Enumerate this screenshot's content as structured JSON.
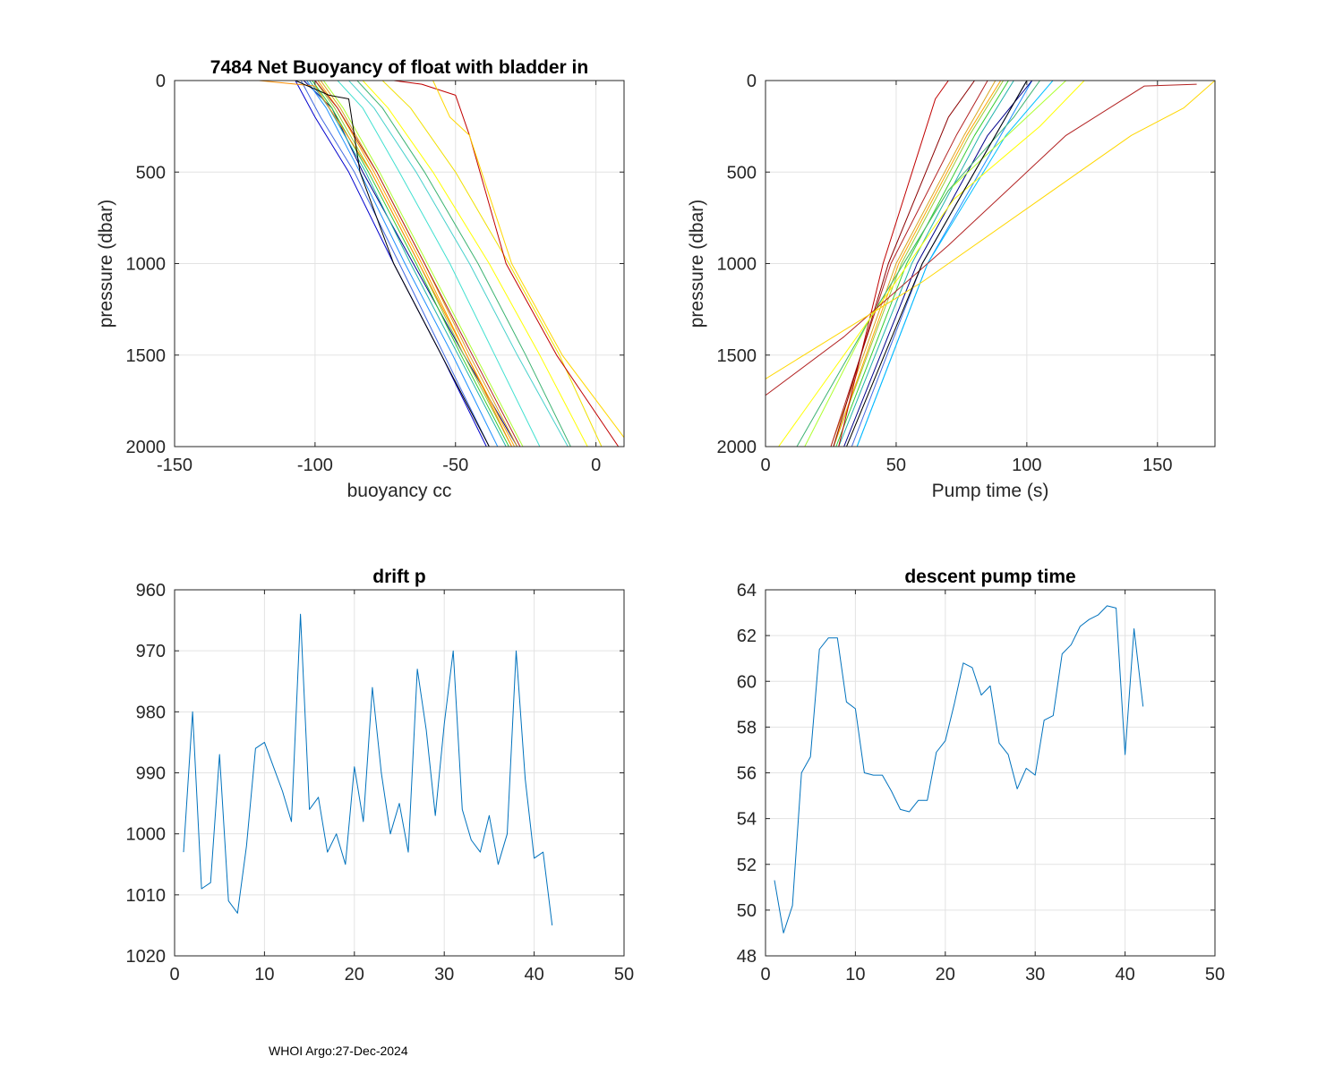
{
  "footer": "WHOI Argo:27-Dec-2024",
  "chart_data": [
    {
      "id": "buoyancy",
      "type": "line",
      "title": "7484 Net Buoyancy of float with bladder in",
      "xlabel": "buoyancy cc",
      "ylabel": "pressure (dbar)",
      "xlim": [
        -150,
        10
      ],
      "ylim": [
        0,
        2000
      ],
      "y_reversed": true,
      "xticks": [
        -150,
        -100,
        -50,
        0
      ],
      "yticks": [
        0,
        500,
        1000,
        1500,
        2000
      ],
      "grid": true,
      "series": [
        {
          "color": "#0000cd",
          "x": [
            -107,
            -100,
            -88,
            -72,
            -55,
            -39
          ],
          "y": [
            0,
            200,
            500,
            1000,
            1500,
            2000
          ]
        },
        {
          "color": "#4169e1",
          "x": [
            -105,
            -98,
            -86,
            -70,
            -54,
            -38
          ],
          "y": [
            0,
            200,
            500,
            1000,
            1500,
            2000
          ]
        },
        {
          "color": "#00008b",
          "x": [
            -104,
            -94,
            -83,
            -65,
            -47,
            -28
          ],
          "y": [
            0,
            150,
            500,
            1000,
            1500,
            2000
          ]
        },
        {
          "color": "#1e90ff",
          "x": [
            -103,
            -96,
            -84,
            -68,
            -51,
            -35
          ],
          "y": [
            0,
            150,
            500,
            1000,
            1500,
            2000
          ]
        },
        {
          "color": "#20b2aa",
          "x": [
            -102,
            -95,
            -82,
            -66,
            -49,
            -32
          ],
          "y": [
            0,
            150,
            500,
            1000,
            1500,
            2000
          ]
        },
        {
          "color": "#32cd32",
          "x": [
            -101,
            -94,
            -81,
            -64,
            -48,
            -31
          ],
          "y": [
            0,
            150,
            500,
            1000,
            1500,
            2000
          ]
        },
        {
          "color": "#9acd32",
          "x": [
            -100,
            -93,
            -80,
            -63,
            -47,
            -30
          ],
          "y": [
            0,
            150,
            500,
            1000,
            1500,
            2000
          ]
        },
        {
          "color": "#ffa500",
          "x": [
            -99,
            -92,
            -79,
            -62,
            -46,
            -29
          ],
          "y": [
            0,
            150,
            500,
            1000,
            1500,
            2000
          ]
        },
        {
          "color": "#ff8c00",
          "x": [
            -120,
            -100,
            -80,
            -63,
            -46,
            -30
          ],
          "y": [
            0,
            30,
            500,
            1000,
            1500,
            2000
          ]
        },
        {
          "color": "#daa520",
          "x": [
            -98,
            -91,
            -78,
            -61,
            -45,
            -28
          ],
          "y": [
            0,
            150,
            500,
            1000,
            1500,
            2000
          ]
        },
        {
          "color": "#b22222",
          "x": [
            -100,
            -92,
            -78,
            -61,
            -44,
            -27
          ],
          "y": [
            0,
            150,
            500,
            1000,
            1500,
            2000
          ]
        },
        {
          "color": "#adff2f",
          "x": [
            -97,
            -90,
            -77,
            -60,
            -43,
            -26
          ],
          "y": [
            0,
            150,
            500,
            1000,
            1500,
            2000
          ]
        },
        {
          "color": "#40e0d0",
          "x": [
            -92,
            -83,
            -70,
            -52,
            -36,
            -20
          ],
          "y": [
            0,
            150,
            500,
            1000,
            1500,
            2000
          ]
        },
        {
          "color": "#48d1cc",
          "x": [
            -88,
            -79,
            -64,
            -45,
            -28,
            -10
          ],
          "y": [
            0,
            150,
            500,
            1000,
            1500,
            2000
          ]
        },
        {
          "color": "#3cb371",
          "x": [
            -85,
            -76,
            -61,
            -42,
            -25,
            -9
          ],
          "y": [
            0,
            150,
            500,
            1000,
            1500,
            2000
          ]
        },
        {
          "color": "#ffff00",
          "x": [
            -83,
            -74,
            -58,
            -38,
            -20,
            -3
          ],
          "y": [
            0,
            150,
            500,
            1000,
            1500,
            2000
          ]
        },
        {
          "color": "#f0e000",
          "x": [
            -76,
            -66,
            -50,
            -31,
            -13,
            2
          ],
          "y": [
            0,
            150,
            500,
            1000,
            1500,
            2000
          ]
        },
        {
          "color": "#c00000",
          "x": [
            -72,
            -62,
            -50,
            -45,
            -32,
            -14,
            8
          ],
          "y": [
            0,
            20,
            80,
            300,
            1000,
            1500,
            2000
          ]
        },
        {
          "color": "#ffd700",
          "x": [
            -58,
            -52,
            -45,
            -30,
            -12,
            10
          ],
          "y": [
            0,
            200,
            300,
            1000,
            1500,
            1950
          ]
        },
        {
          "color": "#000000",
          "x": [
            -107,
            -95,
            -88,
            -84,
            -72,
            -55,
            -38
          ],
          "y": [
            0,
            80,
            100,
            500,
            1000,
            1500,
            2000
          ]
        }
      ]
    },
    {
      "id": "pumptime",
      "type": "line",
      "title": "",
      "xlabel": "Pump time (s)",
      "ylabel": "pressure (dbar)",
      "xlim": [
        0,
        172
      ],
      "ylim": [
        0,
        2000
      ],
      "y_reversed": true,
      "xticks": [
        0,
        50,
        100,
        150
      ],
      "yticks": [
        0,
        500,
        1000,
        1500,
        2000
      ],
      "grid": true,
      "series": [
        {
          "color": "#1e90ff",
          "x": [
            102,
            90,
            62,
            35
          ],
          "y": [
            0,
            300,
            1000,
            2000
          ]
        },
        {
          "color": "#4169e1",
          "x": [
            100,
            88,
            60,
            33
          ],
          "y": [
            0,
            300,
            1000,
            2000
          ]
        },
        {
          "color": "#00bfff",
          "x": [
            110,
            92,
            62,
            35
          ],
          "y": [
            0,
            300,
            1000,
            2000
          ]
        },
        {
          "color": "#00008b",
          "x": [
            102,
            85,
            58,
            30
          ],
          "y": [
            0,
            300,
            1000,
            2000
          ]
        },
        {
          "color": "#20b2aa",
          "x": [
            95,
            82,
            56,
            28
          ],
          "y": [
            0,
            300,
            1000,
            2000
          ]
        },
        {
          "color": "#32cd32",
          "x": [
            93,
            80,
            54,
            27
          ],
          "y": [
            0,
            300,
            1000,
            2000
          ]
        },
        {
          "color": "#9acd32",
          "x": [
            91,
            78,
            52,
            26
          ],
          "y": [
            0,
            300,
            1000,
            2000
          ]
        },
        {
          "color": "#ffa500",
          "x": [
            90,
            77,
            51,
            26
          ],
          "y": [
            0,
            300,
            1000,
            2000
          ]
        },
        {
          "color": "#daa520",
          "x": [
            88,
            76,
            50,
            25
          ],
          "y": [
            0,
            300,
            1000,
            2000
          ]
        },
        {
          "color": "#b22222",
          "x": [
            85,
            73,
            48,
            25
          ],
          "y": [
            0,
            300,
            1000,
            2000
          ]
        },
        {
          "color": "#c00000",
          "x": [
            70,
            65,
            45,
            28
          ],
          "y": [
            0,
            100,
            1000,
            2000
          ]
        },
        {
          "color": "#8b0000",
          "x": [
            80,
            70,
            47,
            26
          ],
          "y": [
            0,
            200,
            1000,
            2000
          ]
        },
        {
          "color": "#adff2f",
          "x": [
            115,
            100,
            70,
            40,
            15
          ],
          "y": [
            0,
            200,
            600,
            1300,
            2000
          ]
        },
        {
          "color": "#3cb371",
          "x": [
            105,
            95,
            70,
            40,
            12
          ],
          "y": [
            0,
            200,
            600,
            1300,
            2000
          ]
        },
        {
          "color": "#ffff00",
          "x": [
            122,
            105,
            72,
            40,
            5
          ],
          "y": [
            0,
            250,
            650,
            1300,
            2000
          ]
        },
        {
          "color": "#b22222",
          "x": [
            165,
            145,
            115,
            70,
            30,
            0
          ],
          "y": [
            20,
            30,
            300,
            900,
            1400,
            1720
          ]
        },
        {
          "color": "#ffd700",
          "x": [
            172,
            160,
            140,
            110,
            60,
            0
          ],
          "y": [
            0,
            150,
            300,
            600,
            1100,
            1630
          ]
        },
        {
          "color": "#000000",
          "x": [
            100,
            88,
            60,
            31
          ],
          "y": [
            0,
            300,
            1000,
            2000
          ]
        }
      ]
    },
    {
      "id": "driftp",
      "type": "line",
      "title": "drift p",
      "xlabel": "",
      "ylabel": "",
      "xlim": [
        0,
        50
      ],
      "ylim": [
        960,
        1020
      ],
      "y_reversed": true,
      "xticks": [
        0,
        10,
        20,
        30,
        40,
        50
      ],
      "yticks": [
        960,
        970,
        980,
        990,
        1000,
        1010,
        1020
      ],
      "grid": true,
      "series": [
        {
          "name": "drift p",
          "color": "#0072bd",
          "x": [
            1,
            2,
            3,
            4,
            5,
            6,
            7,
            8,
            9,
            10,
            11,
            12,
            13,
            14,
            15,
            16,
            17,
            18,
            19,
            20,
            21,
            22,
            23,
            24,
            25,
            26,
            27,
            28,
            29,
            30,
            31,
            32,
            33,
            34,
            35,
            36,
            37,
            38,
            39,
            40,
            41,
            42
          ],
          "y": [
            1003,
            980,
            1009,
            1008,
            987,
            1011,
            1013,
            1002,
            986,
            985,
            989,
            993,
            998,
            964,
            996,
            994,
            1003,
            1000,
            1005,
            989,
            998,
            976,
            990,
            1000,
            995,
            1003,
            973,
            983,
            997,
            982,
            970,
            996,
            1001,
            1003,
            997,
            1005,
            1000,
            970,
            991,
            1004,
            1003,
            1015
          ]
        }
      ]
    },
    {
      "id": "descentpump",
      "type": "line",
      "title": "descent pump time",
      "xlabel": "",
      "ylabel": "",
      "xlim": [
        0,
        50
      ],
      "ylim": [
        48,
        64
      ],
      "y_reversed": false,
      "xticks": [
        0,
        10,
        20,
        30,
        40,
        50
      ],
      "yticks": [
        48,
        50,
        52,
        54,
        56,
        58,
        60,
        62,
        64
      ],
      "grid": true,
      "series": [
        {
          "name": "descent pump time",
          "color": "#0072bd",
          "x": [
            1,
            2,
            3,
            4,
            5,
            6,
            7,
            8,
            9,
            10,
            11,
            12,
            13,
            14,
            15,
            16,
            17,
            18,
            19,
            20,
            21,
            22,
            23,
            24,
            25,
            26,
            27,
            28,
            29,
            30,
            31,
            32,
            33,
            34,
            35,
            36,
            37,
            38,
            39,
            40,
            41,
            42
          ],
          "y": [
            51.3,
            49,
            50.2,
            56,
            56.7,
            61.4,
            61.9,
            61.9,
            59.1,
            58.8,
            56,
            55.9,
            55.9,
            55.2,
            54.4,
            54.3,
            54.8,
            54.8,
            56.9,
            57.4,
            59,
            60.8,
            60.6,
            59.4,
            59.8,
            57.3,
            56.8,
            55.3,
            56.2,
            55.9,
            58.3,
            58.5,
            61.2,
            61.6,
            62.4,
            62.7,
            62.9,
            63.3,
            63.2,
            56.8,
            62.3,
            58.9
          ]
        }
      ]
    }
  ]
}
